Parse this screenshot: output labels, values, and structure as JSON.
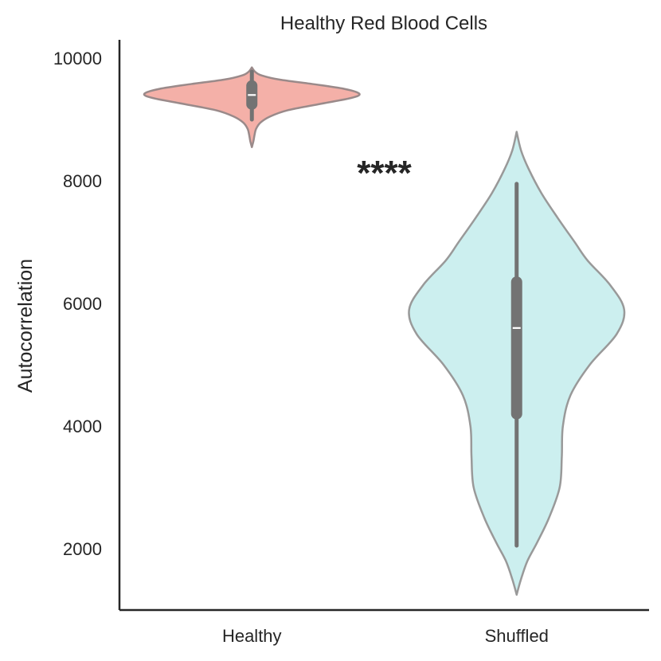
{
  "chart_data": {
    "type": "violin",
    "title": "Healthy Red Blood Cells",
    "xlabel": "",
    "ylabel": "Autocorrelation",
    "ylim": [
      1000,
      10300
    ],
    "yticks": [
      2000,
      4000,
      6000,
      8000,
      10000
    ],
    "categories": [
      "Healthy",
      "Shuffled"
    ],
    "significance": {
      "label": "****",
      "between": [
        "Healthy",
        "Shuffled"
      ],
      "y": 8300
    },
    "series": [
      {
        "name": "Healthy",
        "color": "#f4b0a8",
        "edge_color": "#9a8a8a",
        "median": 9400,
        "q1": 9250,
        "q3": 9550,
        "whisker_low": 9000,
        "whisker_high": 9780,
        "density": [
          [
            8550,
            0.0
          ],
          [
            8650,
            0.015
          ],
          [
            8750,
            0.025
          ],
          [
            8850,
            0.04
          ],
          [
            8950,
            0.08
          ],
          [
            9050,
            0.17
          ],
          [
            9150,
            0.33
          ],
          [
            9250,
            0.62
          ],
          [
            9350,
            0.92
          ],
          [
            9420,
            1.0
          ],
          [
            9500,
            0.86
          ],
          [
            9580,
            0.56
          ],
          [
            9650,
            0.26
          ],
          [
            9720,
            0.09
          ],
          [
            9780,
            0.03
          ],
          [
            9850,
            0.0
          ]
        ]
      },
      {
        "name": "Shuffled",
        "color": "#ccefef",
        "edge_color": "#999999",
        "median": 5600,
        "q1": 4200,
        "q3": 6350,
        "whisker_low": 2050,
        "whisker_high": 7950,
        "density": [
          [
            1250,
            0.0
          ],
          [
            1500,
            0.04
          ],
          [
            1800,
            0.1
          ],
          [
            2100,
            0.19
          ],
          [
            2500,
            0.3
          ],
          [
            3000,
            0.4
          ],
          [
            3500,
            0.42
          ],
          [
            4000,
            0.43
          ],
          [
            4500,
            0.5
          ],
          [
            5000,
            0.68
          ],
          [
            5500,
            0.93
          ],
          [
            5900,
            1.0
          ],
          [
            6300,
            0.87
          ],
          [
            6700,
            0.66
          ],
          [
            7000,
            0.54
          ],
          [
            7400,
            0.38
          ],
          [
            7800,
            0.23
          ],
          [
            8200,
            0.11
          ],
          [
            8500,
            0.04
          ],
          [
            8800,
            0.0
          ]
        ]
      }
    ]
  }
}
